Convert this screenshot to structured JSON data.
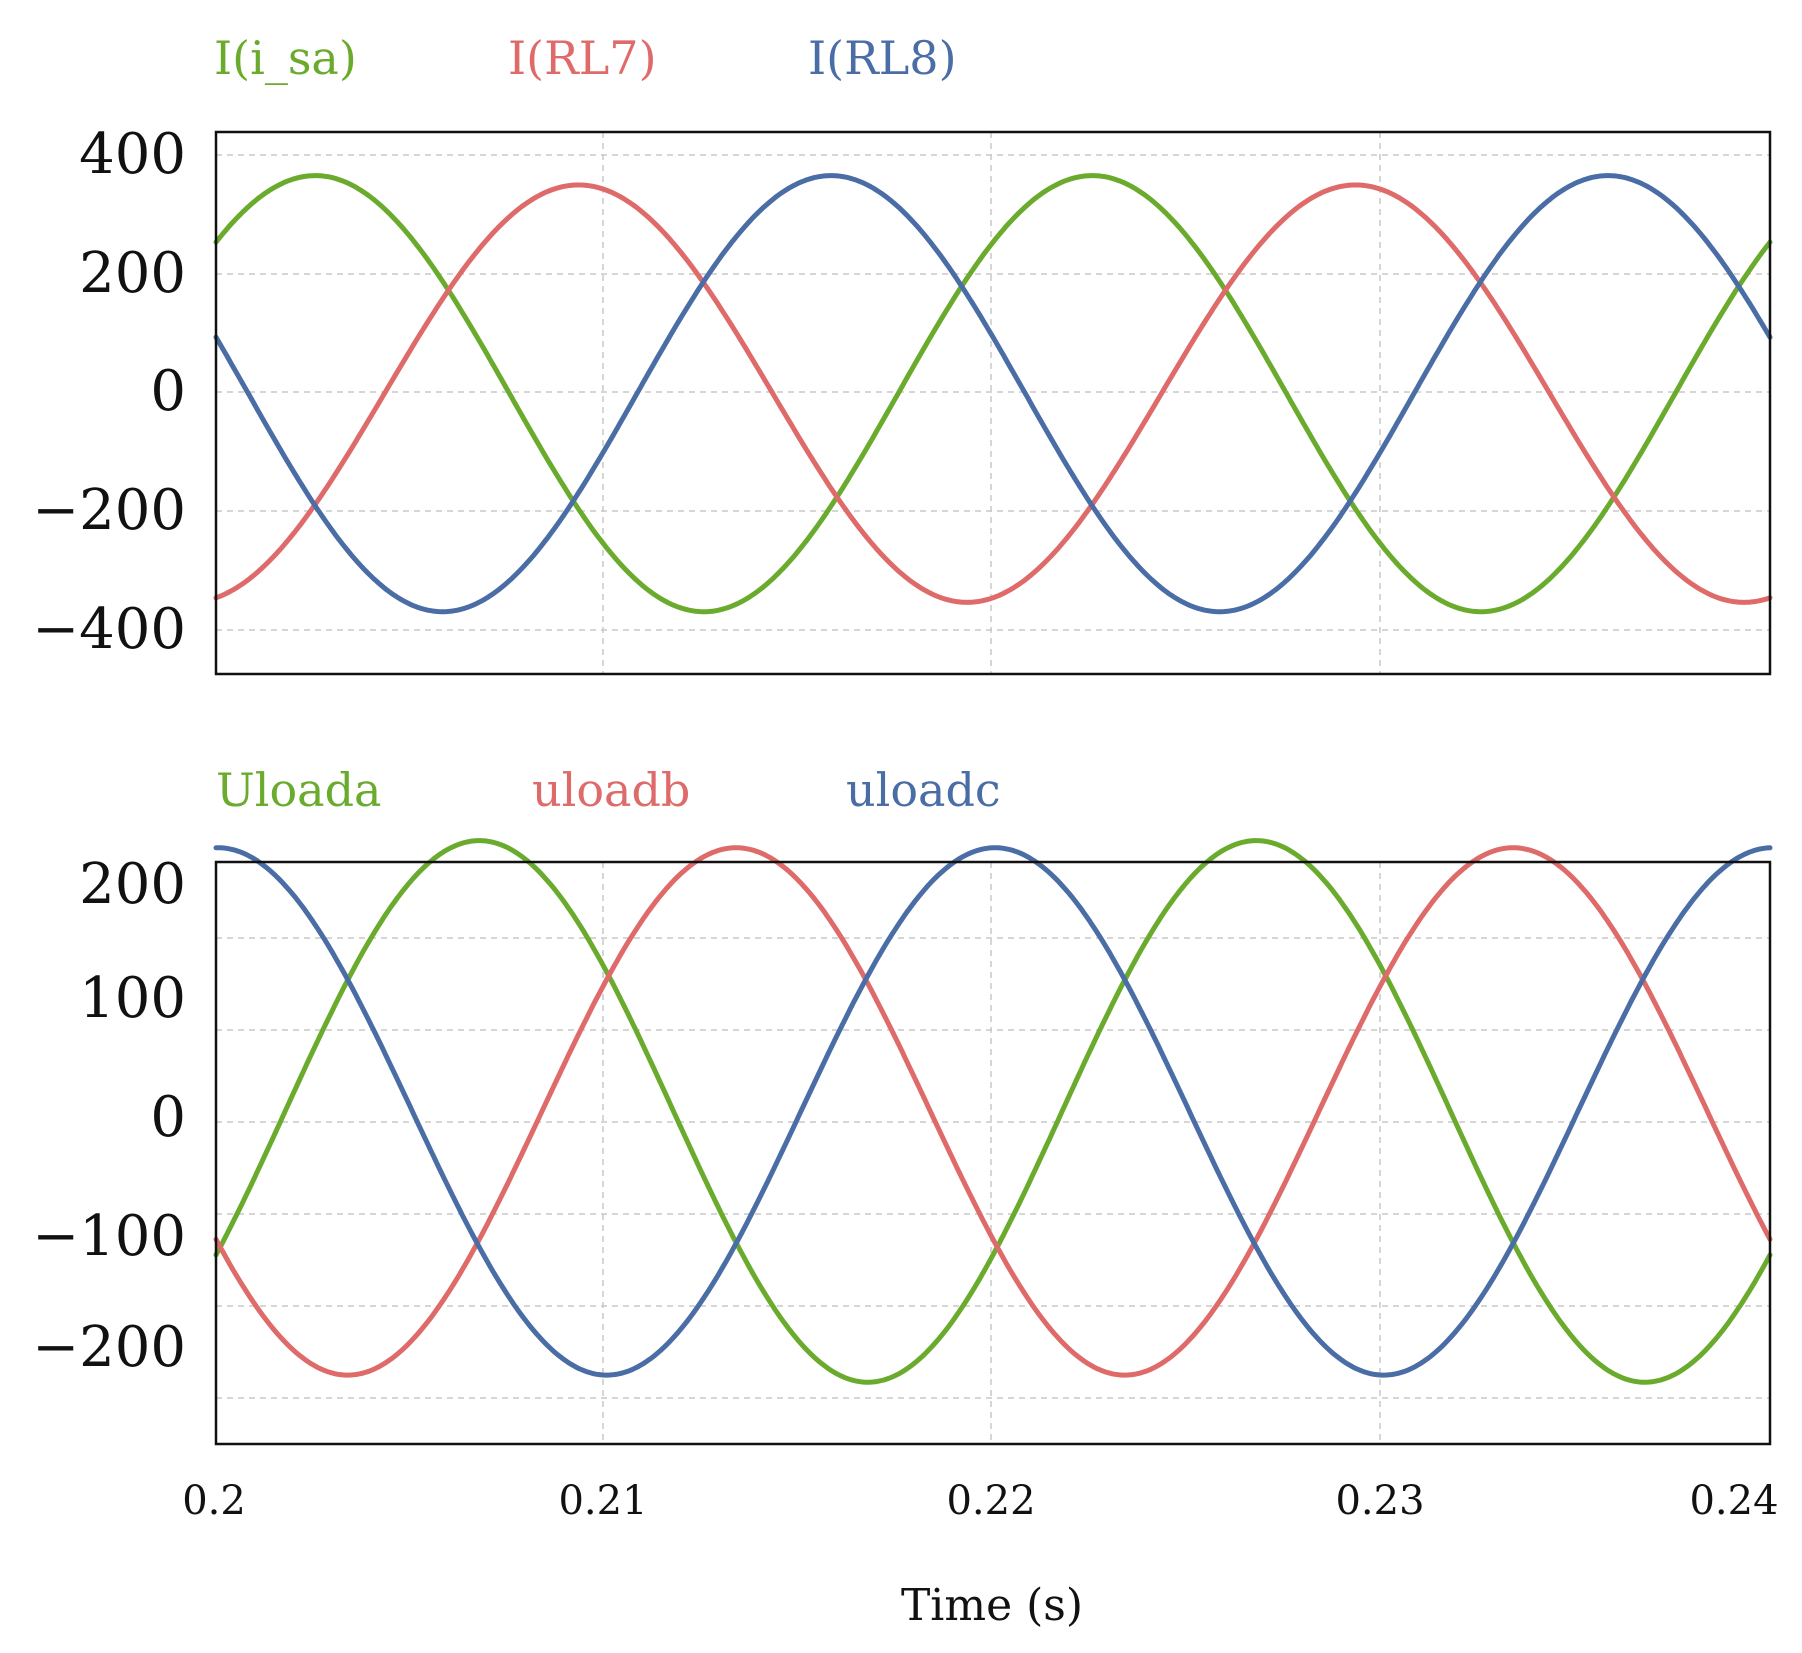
{
  "chart_data": [
    {
      "type": "line",
      "legend_placement": "top-left, above plot",
      "grid": true,
      "xlim": [
        0.2,
        0.24
      ],
      "ylim": [
        -450,
        420
      ],
      "yticks": [
        400,
        200,
        0,
        -200,
        -400
      ],
      "ytick_labels": [
        "400",
        "200",
        "0",
        "−200",
        "−400"
      ],
      "series": [
        {
          "name": "I(i_sa)",
          "color": "#6aab2e",
          "amplitude": 350,
          "frequency_hz": 50,
          "phase_deg": 44,
          "value_at_t0": 240
        },
        {
          "name": "I(RL7)",
          "color": "#df6a6a",
          "amplitude": 335,
          "frequency_hz": 50,
          "phase_deg": -78,
          "value_at_t0": -330
        },
        {
          "name": "I(RL8)",
          "color": "#4a6da6",
          "amplitude": 350,
          "frequency_hz": 50,
          "phase_deg": 165,
          "value_at_t0": 90
        }
      ]
    },
    {
      "type": "line",
      "legend_placement": "top-left, above plot",
      "grid": true,
      "xlim": [
        0.2,
        0.24
      ],
      "ylim": [
        -280,
        210
      ],
      "yticks": [
        200,
        100,
        0,
        -100,
        -200
      ],
      "ytick_labels": [
        "200",
        "100",
        "0",
        "−100",
        "−200"
      ],
      "xticks": [
        0.2,
        0.21,
        0.22,
        0.23,
        0.24
      ],
      "xtick_labels": [
        "0.2",
        "0.21",
        "0.22",
        "0.23",
        "0.24"
      ],
      "xlabel": "Time (s)",
      "series": [
        {
          "name": "Uloada",
          "color": "#6aab2e",
          "amplitude": 228,
          "frequency_hz": 50,
          "phase_deg": -32,
          "value_at_t0": -120
        },
        {
          "name": "uloadb",
          "color": "#df6a6a",
          "amplitude": 222,
          "frequency_hz": 50,
          "phase_deg": -151,
          "value_at_t0": -108
        },
        {
          "name": "uloadc",
          "color": "#4a6da6",
          "amplitude": 222,
          "frequency_hz": 50,
          "phase_deg": 89,
          "value_at_t0": 222
        }
      ]
    }
  ]
}
